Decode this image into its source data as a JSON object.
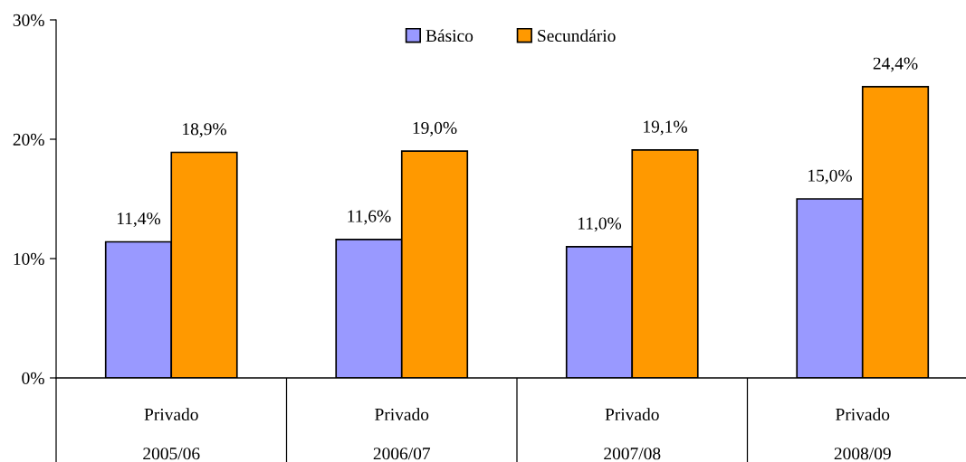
{
  "chart_data": {
    "type": "bar",
    "categories": [
      "Privado\n2005/06",
      "Privado\n2006/07",
      "Privado\n2007/08",
      "Privado\n2008/09"
    ],
    "series": [
      {
        "name": "Básico",
        "color": "#9999ff",
        "values": [
          11.4,
          11.6,
          11.0,
          15.0
        ],
        "value_labels": [
          "11,4%",
          "11,6%",
          "11,0%",
          "15,0%"
        ]
      },
      {
        "name": "Secundário",
        "color": "#ff9900",
        "values": [
          18.9,
          19.0,
          19.1,
          24.4
        ],
        "value_labels": [
          "18,9%",
          "19,0%",
          "19,1%",
          "24,4%"
        ]
      }
    ],
    "ylim": [
      0,
      30
    ],
    "yticks": [
      {
        "value": 0,
        "label": "0%"
      },
      {
        "value": 10,
        "label": "10%"
      },
      {
        "value": 20,
        "label": "20%"
      },
      {
        "value": 30,
        "label": "30%"
      }
    ],
    "grid": false,
    "legend": "top"
  }
}
